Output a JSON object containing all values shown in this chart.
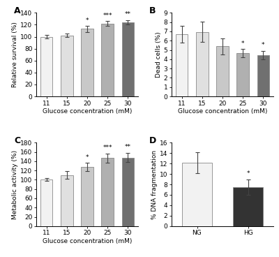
{
  "panel_A": {
    "categories": [
      "11",
      "15",
      "20",
      "25",
      "30"
    ],
    "values": [
      100,
      102,
      113,
      122,
      124
    ],
    "errors": [
      2.5,
      3.0,
      5.0,
      4.0,
      4.0
    ],
    "colors": [
      "#f2f2f2",
      "#e0e0e0",
      "#c8c8c8",
      "#b0b0b0",
      "#707070"
    ],
    "significance": [
      "",
      "",
      "*",
      "***",
      "**"
    ],
    "ylabel": "Relative survival (%)",
    "xlabel": "Glucose concentration (mM)",
    "ylim": [
      0,
      140
    ],
    "yticks": [
      0,
      20,
      40,
      60,
      80,
      100,
      120,
      140
    ],
    "label": "A"
  },
  "panel_B": {
    "categories": [
      "11",
      "15",
      "20",
      "25",
      "30"
    ],
    "values": [
      6.7,
      6.95,
      5.4,
      4.65,
      4.45
    ],
    "errors": [
      0.9,
      1.1,
      0.85,
      0.45,
      0.45
    ],
    "colors": [
      "#f2f2f2",
      "#e0e0e0",
      "#c8c8c8",
      "#b0b0b0",
      "#707070"
    ],
    "significance": [
      "",
      "",
      "",
      "*",
      "*"
    ],
    "ylabel": "Dead cells (%)",
    "xlabel": "Glucose concentration (mM)",
    "ylim": [
      0,
      9
    ],
    "yticks": [
      0,
      1,
      2,
      3,
      4,
      5,
      6,
      7,
      8,
      9
    ],
    "label": "B"
  },
  "panel_C": {
    "categories": [
      "11",
      "15",
      "20",
      "25",
      "30"
    ],
    "values": [
      100,
      110,
      127,
      147,
      148
    ],
    "errors": [
      3.0,
      8.0,
      9.0,
      10.0,
      10.0
    ],
    "colors": [
      "#f2f2f2",
      "#e0e0e0",
      "#c8c8c8",
      "#b0b0b0",
      "#707070"
    ],
    "significance": [
      "",
      "",
      "*",
      "***",
      "**"
    ],
    "ylabel": "Metabolic activity (%)",
    "xlabel": "Glucose concentration (mM)",
    "ylim": [
      0,
      180
    ],
    "yticks": [
      0,
      20,
      40,
      60,
      80,
      100,
      120,
      140,
      160,
      180
    ],
    "label": "C"
  },
  "panel_D": {
    "categories": [
      "NG",
      "HG"
    ],
    "values": [
      12.2,
      7.5
    ],
    "errors": [
      2.0,
      1.5
    ],
    "colors": [
      "#f2f2f2",
      "#333333"
    ],
    "significance": [
      "",
      "*"
    ],
    "ylabel": "% DNA fragmentation",
    "xlabel": "",
    "ylim": [
      0,
      16
    ],
    "yticks": [
      0,
      2,
      4,
      6,
      8,
      10,
      12,
      14,
      16
    ],
    "label": "D"
  },
  "background_color": "#ffffff",
  "bar_edgecolor": "#888888",
  "errorbar_color": "#444444",
  "sig_fontsize": 6.5,
  "tick_fontsize": 6.5,
  "axis_label_fontsize": 6.5,
  "panel_label_fontsize": 9
}
